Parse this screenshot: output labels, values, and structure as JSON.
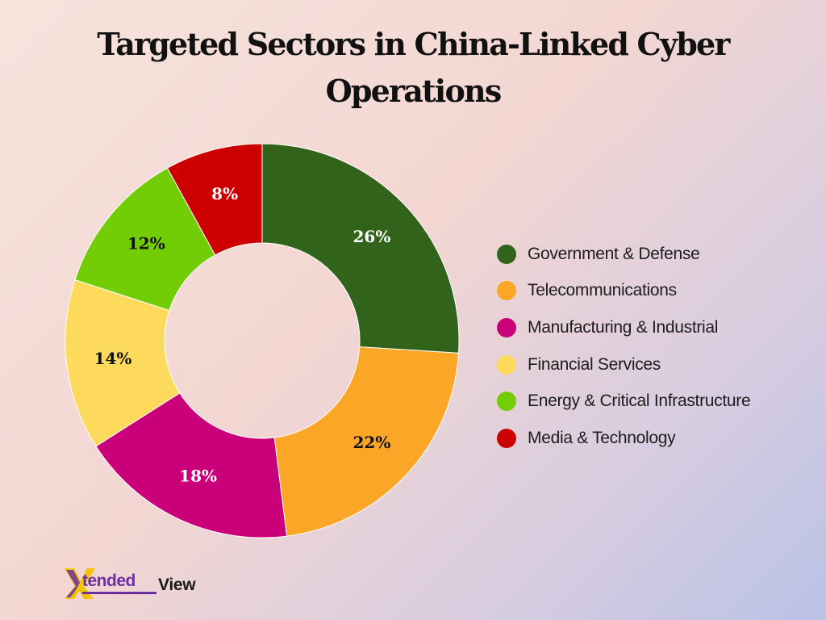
{
  "title": "Targeted Sectors in China-Linked Cyber Operations",
  "chart_data": {
    "type": "pie",
    "categories": [
      "Government & Defense",
      "Telecommunications",
      "Manufacturing & Industrial",
      "Financial Services",
      "Energy & Critical Infrastructure",
      "Media & Technology"
    ],
    "values": [
      26,
      22,
      18,
      14,
      12,
      8
    ],
    "labels": [
      "26%",
      "22%",
      "18%",
      "14%",
      "12%",
      "8%"
    ],
    "colors": [
      "#31641a",
      "#fba626",
      "#c9007a",
      "#fdd95c",
      "#72cc06",
      "#cc0000"
    ],
    "label_colors": [
      "#ffffff",
      "#111111",
      "#ffffff",
      "#111111",
      "#111111",
      "#ffffff"
    ],
    "legend_position": "right",
    "hole": "donut"
  },
  "logo": {
    "mark": "X",
    "text_part1": "tended",
    "text_part2": "View"
  }
}
